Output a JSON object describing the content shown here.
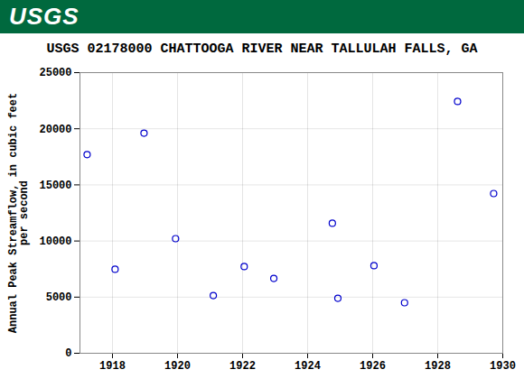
{
  "logo": "USGS",
  "chart_data": {
    "type": "scatter",
    "title": "USGS 02178000 CHATTOOGA RIVER NEAR TALLULAH FALLS, GA",
    "y_label": "Annual Peak Streamflow, in cubic feet\nper second",
    "x": [
      1917.22,
      1918.08,
      1918.97,
      1919.94,
      1921.1,
      1922.05,
      1922.96,
      1924.76,
      1924.93,
      1926.04,
      1926.98,
      1928.61,
      1929.72
    ],
    "values": [
      17700,
      7480,
      19610,
      10210,
      5140,
      7720,
      6670,
      11580,
      4900,
      7800,
      4500,
      22430,
      14230
    ],
    "color": "#0000cc",
    "marker": "circle_open",
    "xlim": [
      1917,
      1930
    ],
    "xticks": [
      1918,
      1920,
      1922,
      1924,
      1926,
      1928,
      1930
    ],
    "ylim": [
      0,
      25000
    ],
    "yticks": [
      0,
      5000,
      10000,
      15000,
      20000,
      25000
    ],
    "grid": true
  }
}
